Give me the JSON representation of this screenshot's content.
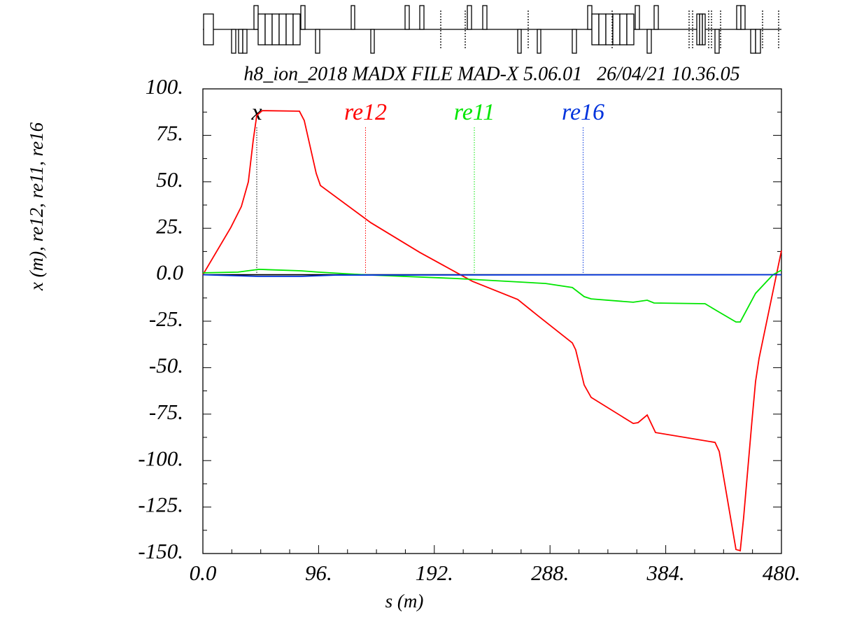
{
  "chart_data": {
    "type": "line",
    "title": "h8_ion_2018 MADX FILE MAD-X 5.06.01   26/04/21 10.36.05",
    "x_label": "s (m)",
    "y_label": "x (m), re12, re11, re16",
    "xlim": [
      0,
      480
    ],
    "ylim": [
      -150,
      100
    ],
    "xticks": [
      {
        "value": 0,
        "label": "0.0"
      },
      {
        "value": 96,
        "label": "96."
      },
      {
        "value": 192,
        "label": "192."
      },
      {
        "value": 288,
        "label": "288."
      },
      {
        "value": 384,
        "label": "384."
      },
      {
        "value": 480,
        "label": "480."
      }
    ],
    "yticks": [
      {
        "value": -150,
        "label": "-150."
      },
      {
        "value": -125,
        "label": "-125."
      },
      {
        "value": -100,
        "label": "-100."
      },
      {
        "value": -75,
        "label": "-75."
      },
      {
        "value": -50,
        "label": "-50."
      },
      {
        "value": -25,
        "label": "-25."
      },
      {
        "value": 0,
        "label": "0.0"
      },
      {
        "value": 25,
        "label": "25."
      },
      {
        "value": 50,
        "label": "50."
      },
      {
        "value": 75,
        "label": "75."
      },
      {
        "value": 100,
        "label": "100."
      }
    ],
    "series": [
      {
        "name": "x",
        "color": "#000000",
        "x": [
          0,
          480
        ],
        "values": [
          0,
          0
        ]
      },
      {
        "name": "re12",
        "color": "#ff0000",
        "x": [
          0,
          23.2,
          31.9,
          37.7,
          41.8,
          44.7,
          49.3,
          80.1,
          84.1,
          94.0,
          97.5,
          139.3,
          179.9,
          223.5,
          261.2,
          278.6,
          306.5,
          309.3,
          316.3,
          322.1,
          357.0,
          361.0,
          368.6,
          375.5,
          424.9,
          428.4,
          442.3,
          445.8,
          448.6,
          455.6,
          458.5,
          461.4,
          480
        ],
        "values": [
          0,
          25.5,
          36.7,
          50,
          72.5,
          85.7,
          88.3,
          88,
          83,
          54.5,
          48,
          28,
          12,
          -3.5,
          -13.3,
          -22.4,
          -36.7,
          -40.4,
          -59.3,
          -66,
          -80,
          -79.6,
          -75.5,
          -84.9,
          -90.2,
          -95.1,
          -147.8,
          -148.5,
          -130.8,
          -78,
          -57.4,
          -45,
          13
        ]
      },
      {
        "name": "re11",
        "color": "#00e600",
        "x": [
          0,
          29,
          46.4,
          81.3,
          95.8,
          133.5,
          208.9,
          284.4,
          306.5,
          316.3,
          322.1,
          357,
          368.6,
          374.3,
          416.6,
          427.2,
          442.3,
          445.8,
          458.5,
          473,
          480
        ],
        "values": [
          1,
          1.4,
          2.9,
          2.1,
          1.4,
          0,
          -2,
          -4.7,
          -6.9,
          -11.8,
          -13,
          -14.8,
          -13.7,
          -15.2,
          -15.6,
          -19.7,
          -25.4,
          -25.4,
          -10,
          0,
          2.5
        ]
      },
      {
        "name": "re16",
        "color": "#0033dd",
        "x": [
          0,
          46.4,
          81,
          110,
          480
        ],
        "values": [
          0,
          -0.9,
          -0.9,
          -0.2,
          0
        ]
      }
    ]
  }
}
